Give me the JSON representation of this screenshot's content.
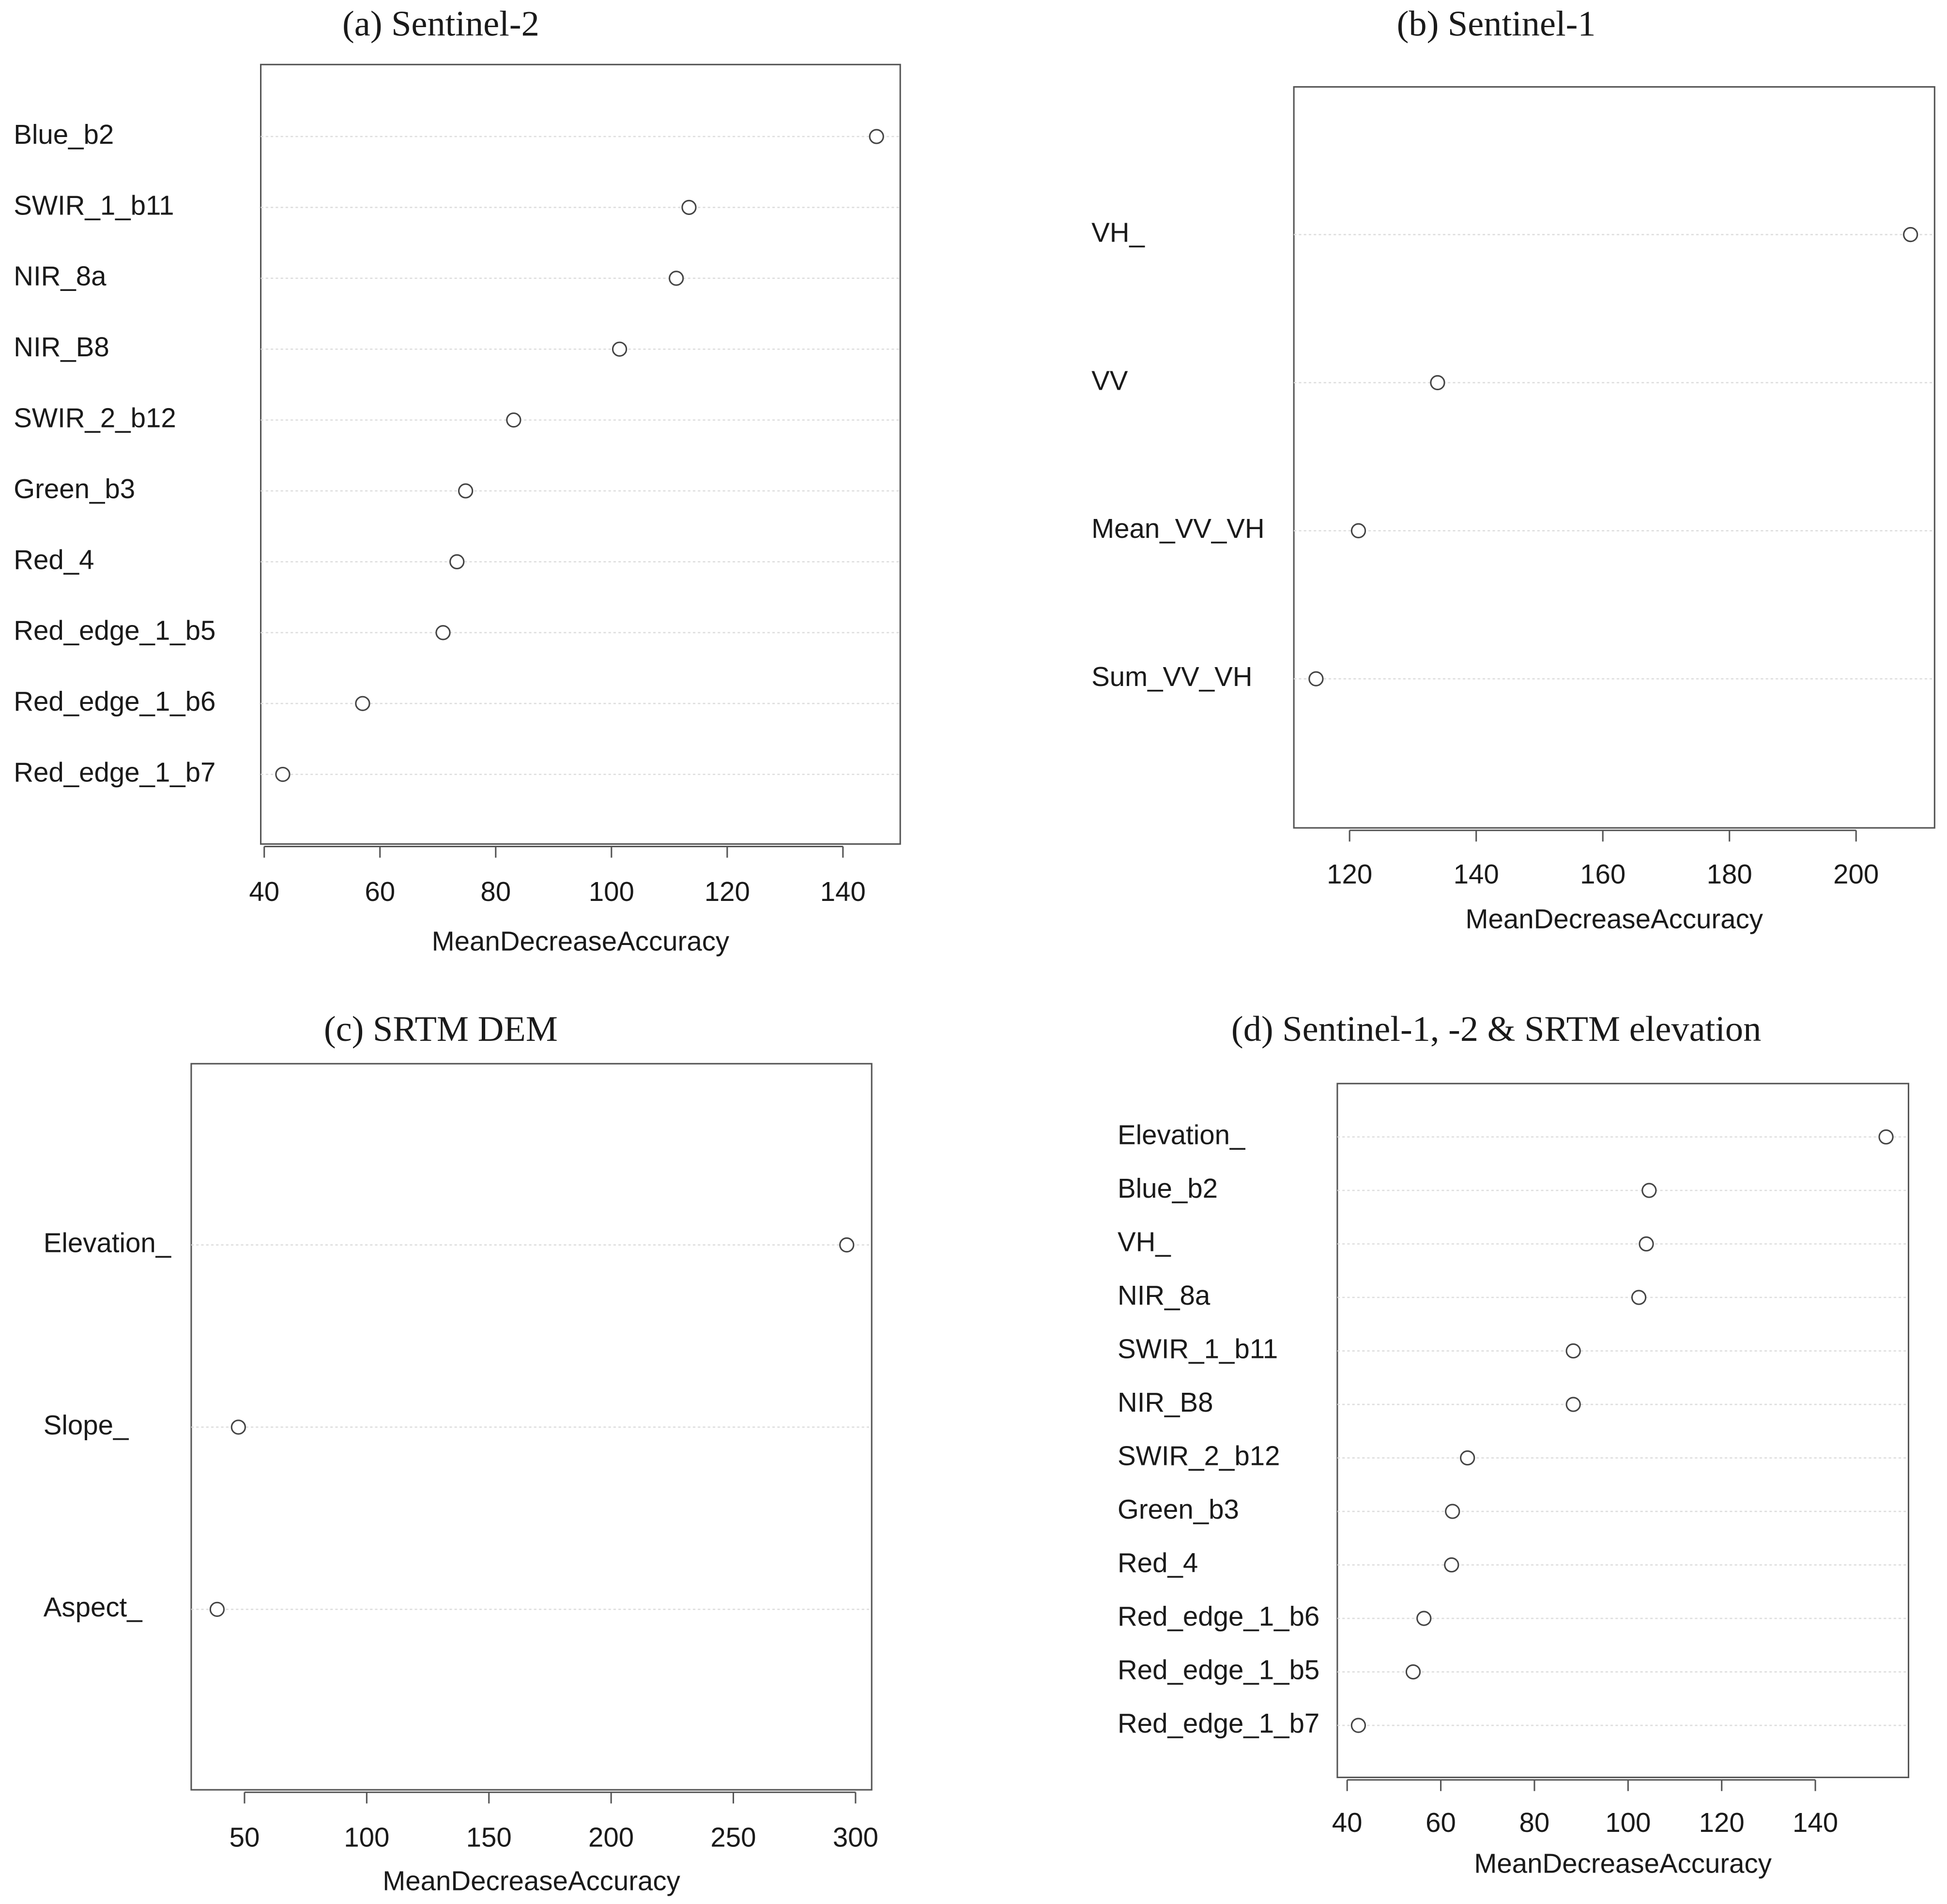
{
  "chart_data": [
    {
      "type": "dot",
      "title": "(a) Sentinel-2",
      "xlabel": "MeanDecreaseAccuracy",
      "categories": [
        "Blue_b2",
        "SWIR_1_b11",
        "NIR_8a",
        "NIR_B8",
        "SWIR_2_b12",
        "Green_b3",
        "Red_4",
        "Red_edge_1_b5",
        "Red_edge_1_b6",
        "Red_edge_1_b7"
      ],
      "values": [
        145.8,
        113.4,
        111.2,
        101.4,
        83.1,
        74.8,
        73.3,
        70.9,
        57.0,
        43.2
      ],
      "xlim": [
        39.4,
        149.9
      ],
      "xticks": [
        40,
        60,
        80,
        100,
        120,
        140
      ]
    },
    {
      "type": "dot",
      "title": "(b) Sentinel-1",
      "xlabel": "MeanDecreaseAccuracy",
      "categories": [
        "VH_",
        "VV",
        "Mean_VV_VH",
        "Sum_VV_VH"
      ],
      "values": [
        208.6,
        133.9,
        121.4,
        114.7
      ],
      "xlim": [
        111.2,
        212.4
      ],
      "xticks": [
        120,
        140,
        160,
        180,
        200
      ]
    },
    {
      "type": "dot",
      "title": "(c) SRTM DEM",
      "xlabel": "MeanDecreaseAccuracy",
      "categories": [
        "Elevation_",
        "Slope_",
        "Aspect_"
      ],
      "values": [
        296.4,
        47.5,
        38.8
      ],
      "xlim": [
        28.2,
        306.6
      ],
      "xticks": [
        50,
        100,
        150,
        200,
        250,
        300
      ]
    },
    {
      "type": "dot",
      "title": "(d) Sentinel-1, -2 & SRTM elevation",
      "xlabel": "MeanDecreaseAccuracy",
      "categories": [
        "Elevation_",
        "Blue_b2",
        "VH_",
        "NIR_8a",
        "SWIR_1_b11",
        "NIR_B8",
        "SWIR_2_b12",
        "Green_b3",
        "Red_4",
        "Red_edge_1_b6",
        "Red_edge_1_b5",
        "Red_edge_1_b7"
      ],
      "values": [
        155.1,
        104.5,
        103.9,
        102.3,
        88.3,
        88.3,
        65.7,
        62.5,
        62.3,
        56.4,
        54.1,
        42.4
      ],
      "xlim": [
        37.9,
        159.9
      ],
      "xticks": [
        40,
        60,
        80,
        100,
        120,
        140
      ]
    }
  ]
}
